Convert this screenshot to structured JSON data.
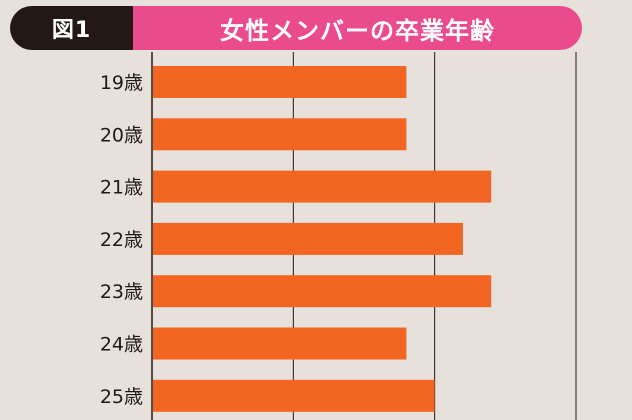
{
  "header": {
    "figure_label": "図1",
    "title": "女性メンバーの卒業年齢"
  },
  "colors": {
    "bar": "#f26522",
    "figure_label_bg": "#231815",
    "title_bg": "#ea4b8d",
    "grid": "#231815",
    "background": "#e6e1db"
  },
  "chart_data": {
    "type": "bar",
    "orientation": "horizontal",
    "title": "女性メンバーの卒業年齢",
    "categories": [
      "19歳",
      "20歳",
      "21歳",
      "22歳",
      "23歳",
      "24歳",
      "25歳"
    ],
    "values": [
      9,
      9,
      12,
      11,
      12,
      9,
      10
    ],
    "xlim": [
      0,
      15
    ],
    "grid": true,
    "xlabel": "",
    "ylabel": ""
  }
}
